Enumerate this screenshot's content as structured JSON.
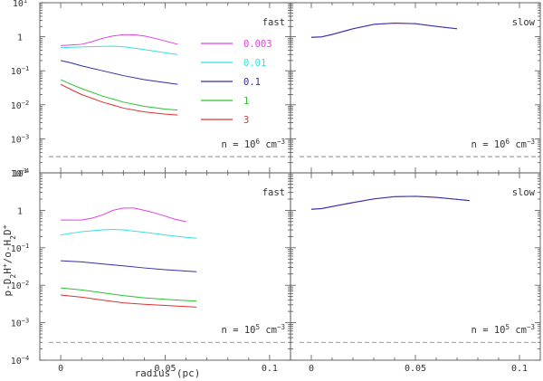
{
  "chart_data": {
    "type": "line",
    "xlabel": "radius (pc)",
    "ylabel": "p-D2H+/o-H2D+",
    "xlim": [
      -0.01,
      0.11
    ],
    "ylim_log10": [
      -4,
      1
    ],
    "x_ticks": [
      {
        "value": 0,
        "label": "0"
      },
      {
        "value": 0.05,
        "label": "0.05"
      },
      {
        "value": 0.1,
        "label": "0.1"
      }
    ],
    "legend": {
      "title": "fast",
      "entries": [
        {
          "label": "0.003",
          "color": "#e040e0"
        },
        {
          "label": "0.01",
          "color": "#38e0e0"
        },
        {
          "label": "0.1",
          "color": "#3030a8"
        },
        {
          "label": "1",
          "color": "#30c030"
        },
        {
          "label": "3",
          "color": "#e03030"
        }
      ]
    },
    "panels": [
      {
        "id": "top-left",
        "mode": "fast",
        "density_text": {
          "prefix": "n = 10",
          "exp": "6",
          "unit": " cm",
          "unit_exp": "−3"
        },
        "reference_level": 0.0003,
        "series": [
          {
            "name": "0.003",
            "color": "#e040e0",
            "points": [
              [
                0,
                0.55
              ],
              [
                0.005,
                0.57
              ],
              [
                0.01,
                0.6
              ],
              [
                0.015,
                0.72
              ],
              [
                0.02,
                0.9
              ],
              [
                0.025,
                1.05
              ],
              [
                0.03,
                1.15
              ],
              [
                0.035,
                1.15
              ],
              [
                0.04,
                1.05
              ],
              [
                0.045,
                0.9
              ],
              [
                0.05,
                0.75
              ],
              [
                0.056,
                0.6
              ]
            ]
          },
          {
            "name": "0.01",
            "color": "#38e0e0",
            "points": [
              [
                0,
                0.48
              ],
              [
                0.01,
                0.5
              ],
              [
                0.02,
                0.52
              ],
              [
                0.025,
                0.53
              ],
              [
                0.03,
                0.51
              ],
              [
                0.04,
                0.42
              ],
              [
                0.05,
                0.34
              ],
              [
                0.056,
                0.3
              ]
            ]
          },
          {
            "name": "0.1",
            "color": "#3030a8",
            "points": [
              [
                0,
                0.2
              ],
              [
                0.005,
                0.17
              ],
              [
                0.01,
                0.14
              ],
              [
                0.02,
                0.1
              ],
              [
                0.03,
                0.072
              ],
              [
                0.04,
                0.055
              ],
              [
                0.05,
                0.045
              ],
              [
                0.056,
                0.04
              ]
            ]
          },
          {
            "name": "1",
            "color": "#30c030",
            "points": [
              [
                0,
                0.055
              ],
              [
                0.005,
                0.04
              ],
              [
                0.01,
                0.03
              ],
              [
                0.02,
                0.018
              ],
              [
                0.03,
                0.012
              ],
              [
                0.04,
                0.009
              ],
              [
                0.05,
                0.0075
              ],
              [
                0.056,
                0.007
              ]
            ]
          },
          {
            "name": "3",
            "color": "#e03030",
            "points": [
              [
                0,
                0.04
              ],
              [
                0.005,
                0.028
              ],
              [
                0.01,
                0.02
              ],
              [
                0.02,
                0.012
              ],
              [
                0.03,
                0.008
              ],
              [
                0.04,
                0.0062
              ],
              [
                0.05,
                0.0053
              ],
              [
                0.056,
                0.005
              ]
            ]
          }
        ]
      },
      {
        "id": "top-right",
        "mode": "slow",
        "density_text": {
          "prefix": "n = 10",
          "exp": "6",
          "unit": " cm",
          "unit_exp": "−3"
        },
        "reference_level": 0.0003,
        "series": [
          {
            "name": "0.003",
            "color": "#e040e0",
            "points": [
              [
                0,
                0.95
              ],
              [
                0.005,
                0.98
              ],
              [
                0.01,
                1.15
              ],
              [
                0.02,
                1.7
              ],
              [
                0.03,
                2.3
              ],
              [
                0.04,
                2.5
              ],
              [
                0.05,
                2.4
              ],
              [
                0.06,
                2.0
              ],
              [
                0.07,
                1.7
              ]
            ]
          },
          {
            "name": "0.1",
            "color": "#3030a8",
            "points": [
              [
                0,
                0.97
              ],
              [
                0.005,
                1.0
              ],
              [
                0.01,
                1.17
              ],
              [
                0.02,
                1.72
              ],
              [
                0.03,
                2.32
              ],
              [
                0.04,
                2.52
              ],
              [
                0.05,
                2.42
              ],
              [
                0.06,
                2.02
              ],
              [
                0.07,
                1.72
              ]
            ]
          }
        ]
      },
      {
        "id": "bottom-left",
        "mode": "fast",
        "density_text": {
          "prefix": "n = 10",
          "exp": "5",
          "unit": " cm",
          "unit_exp": "−3"
        },
        "reference_level": 0.0003,
        "series": [
          {
            "name": "0.003",
            "color": "#e040e0",
            "points": [
              [
                0,
                0.55
              ],
              [
                0.005,
                0.55
              ],
              [
                0.01,
                0.55
              ],
              [
                0.015,
                0.62
              ],
              [
                0.02,
                0.75
              ],
              [
                0.025,
                1.0
              ],
              [
                0.03,
                1.15
              ],
              [
                0.035,
                1.15
              ],
              [
                0.04,
                1.0
              ],
              [
                0.045,
                0.85
              ],
              [
                0.05,
                0.7
              ],
              [
                0.055,
                0.57
              ],
              [
                0.06,
                0.5
              ]
            ]
          },
          {
            "name": "0.01",
            "color": "#38e0e0",
            "points": [
              [
                0,
                0.22
              ],
              [
                0.01,
                0.27
              ],
              [
                0.02,
                0.3
              ],
              [
                0.025,
                0.31
              ],
              [
                0.03,
                0.3
              ],
              [
                0.04,
                0.26
              ],
              [
                0.05,
                0.22
              ],
              [
                0.06,
                0.19
              ],
              [
                0.065,
                0.18
              ]
            ]
          },
          {
            "name": "0.1",
            "color": "#3030a8",
            "points": [
              [
                0,
                0.045
              ],
              [
                0.01,
                0.042
              ],
              [
                0.02,
                0.037
              ],
              [
                0.03,
                0.033
              ],
              [
                0.04,
                0.029
              ],
              [
                0.05,
                0.026
              ],
              [
                0.06,
                0.024
              ],
              [
                0.065,
                0.023
              ]
            ]
          },
          {
            "name": "1",
            "color": "#30c030",
            "points": [
              [
                0,
                0.0085
              ],
              [
                0.01,
                0.0075
              ],
              [
                0.02,
                0.0063
              ],
              [
                0.03,
                0.0053
              ],
              [
                0.04,
                0.0046
              ],
              [
                0.05,
                0.0042
              ],
              [
                0.06,
                0.0039
              ],
              [
                0.065,
                0.0038
              ]
            ]
          },
          {
            "name": "3",
            "color": "#e03030",
            "points": [
              [
                0,
                0.0055
              ],
              [
                0.01,
                0.0048
              ],
              [
                0.02,
                0.004
              ],
              [
                0.03,
                0.0034
              ],
              [
                0.04,
                0.0031
              ],
              [
                0.05,
                0.0029
              ],
              [
                0.06,
                0.0027
              ],
              [
                0.065,
                0.0026
              ]
            ]
          }
        ]
      },
      {
        "id": "bottom-right",
        "mode": "slow",
        "density_text": {
          "prefix": "n = 10",
          "exp": "5",
          "unit": " cm",
          "unit_exp": "−3"
        },
        "reference_level": 0.0003,
        "series": [
          {
            "name": "0.003",
            "color": "#e040e0",
            "points": [
              [
                0,
                1.05
              ],
              [
                0.005,
                1.1
              ],
              [
                0.01,
                1.25
              ],
              [
                0.02,
                1.6
              ],
              [
                0.03,
                2.0
              ],
              [
                0.04,
                2.3
              ],
              [
                0.05,
                2.35
              ],
              [
                0.06,
                2.2
              ],
              [
                0.07,
                1.95
              ],
              [
                0.076,
                1.8
              ]
            ]
          },
          {
            "name": "0.1",
            "color": "#3030a8",
            "points": [
              [
                0,
                1.07
              ],
              [
                0.005,
                1.12
              ],
              [
                0.01,
                1.27
              ],
              [
                0.02,
                1.62
              ],
              [
                0.03,
                2.02
              ],
              [
                0.04,
                2.32
              ],
              [
                0.05,
                2.37
              ],
              [
                0.06,
                2.22
              ],
              [
                0.07,
                1.97
              ],
              [
                0.076,
                1.82
              ]
            ]
          }
        ]
      }
    ]
  }
}
